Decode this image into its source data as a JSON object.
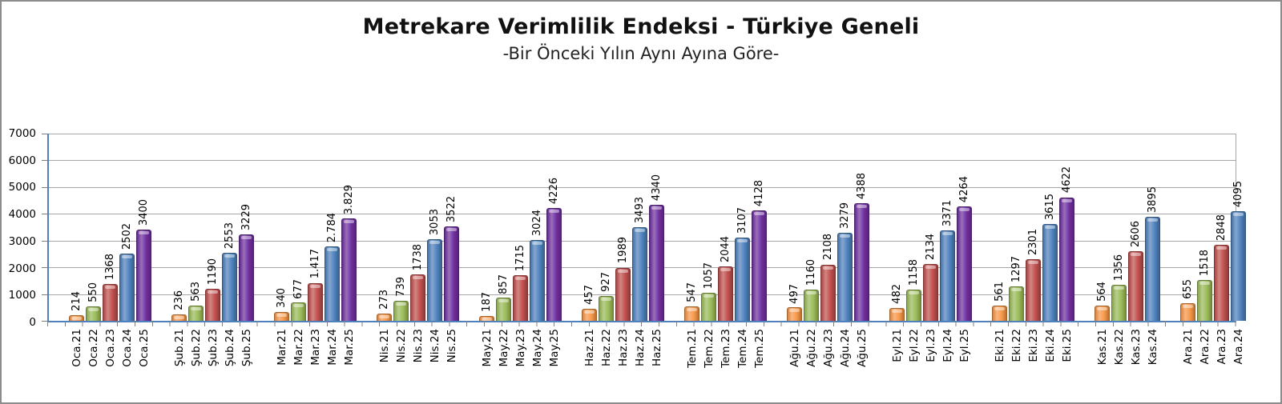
{
  "title": "Metrekare Verimlilik Endeksi - Türkiye Geneli",
  "subtitle": "-Bir Önceki Yılın Aynı Ayına Göre-",
  "chart_data": {
    "type": "bar",
    "title": "Metrekare Verimlilik Endeksi - Türkiye Geneli",
    "subtitle": "-Bir Önceki Yılın Aynı Ayına Göre-",
    "xlabel": "",
    "ylabel": "",
    "ylim": [
      0,
      7000
    ],
    "ytick_step": 1000,
    "yticks": [
      0,
      1000,
      2000,
      3000,
      4000,
      5000,
      6000,
      7000
    ],
    "grid": "horizontal",
    "legend": "none",
    "axis_color": "#4F81BD",
    "gridline_color": "#A6A6A6",
    "bar_colors": [
      "#F79646",
      "#9BBB59",
      "#C0504D",
      "#4F81BD",
      "#7030A0"
    ],
    "groups": [
      {
        "month": "Oca",
        "bars": [
          {
            "label": "Oca.21",
            "value": 214,
            "display": "214"
          },
          {
            "label": "Oca.22",
            "value": 550,
            "display": "550"
          },
          {
            "label": "Oca.23",
            "value": 1368,
            "display": "1368"
          },
          {
            "label": "Oca.24",
            "value": 2502,
            "display": "2502"
          },
          {
            "label": "Oca.25",
            "value": 3400,
            "display": "3400"
          }
        ]
      },
      {
        "month": "Şub",
        "bars": [
          {
            "label": "Şub.21",
            "value": 236,
            "display": "236"
          },
          {
            "label": "Şub.22",
            "value": 563,
            "display": "563"
          },
          {
            "label": "Şub.23",
            "value": 1190,
            "display": "1190"
          },
          {
            "label": "Şub.24",
            "value": 2553,
            "display": "2553"
          },
          {
            "label": "Şub.25",
            "value": 3229,
            "display": "3229"
          }
        ]
      },
      {
        "month": "Mar",
        "bars": [
          {
            "label": "Mar.21",
            "value": 340,
            "display": "340"
          },
          {
            "label": "Mar.22",
            "value": 677,
            "display": "677"
          },
          {
            "label": "Mar.23",
            "value": 1417,
            "display": "1.417"
          },
          {
            "label": "Mar.24",
            "value": 2784,
            "display": "2.784"
          },
          {
            "label": "Mar.25",
            "value": 3829,
            "display": "3.829"
          }
        ]
      },
      {
        "month": "Nis",
        "bars": [
          {
            "label": "Nis.21",
            "value": 273,
            "display": "273"
          },
          {
            "label": "Nis.22",
            "value": 739,
            "display": "739"
          },
          {
            "label": "Nis.23",
            "value": 1738,
            "display": "1738"
          },
          {
            "label": "Nis.24",
            "value": 3053,
            "display": "3053"
          },
          {
            "label": "Nis.25",
            "value": 3522,
            "display": "3522"
          }
        ]
      },
      {
        "month": "May",
        "bars": [
          {
            "label": "May.21",
            "value": 187,
            "display": "187"
          },
          {
            "label": "May.22",
            "value": 857,
            "display": "857"
          },
          {
            "label": "May.23",
            "value": 1715,
            "display": "1715"
          },
          {
            "label": "May.24",
            "value": 3024,
            "display": "3024"
          },
          {
            "label": "May.25",
            "value": 4226,
            "display": "4226"
          }
        ]
      },
      {
        "month": "Haz",
        "bars": [
          {
            "label": "Haz.21",
            "value": 457,
            "display": "457"
          },
          {
            "label": "Haz.22",
            "value": 927,
            "display": "927"
          },
          {
            "label": "Haz.23",
            "value": 1989,
            "display": "1989"
          },
          {
            "label": "Haz.24",
            "value": 3493,
            "display": "3493"
          },
          {
            "label": "Haz.25",
            "value": 4340,
            "display": "4340"
          }
        ]
      },
      {
        "month": "Tem",
        "bars": [
          {
            "label": "Tem.21",
            "value": 547,
            "display": "547"
          },
          {
            "label": "Tem.22",
            "value": 1057,
            "display": "1057"
          },
          {
            "label": "Tem.23",
            "value": 2044,
            "display": "2044"
          },
          {
            "label": "Tem.24",
            "value": 3107,
            "display": "3107"
          },
          {
            "label": "Tem.25",
            "value": 4128,
            "display": "4128"
          }
        ]
      },
      {
        "month": "Ağu",
        "bars": [
          {
            "label": "Ağu.21",
            "value": 497,
            "display": "497"
          },
          {
            "label": "Ağu.22",
            "value": 1160,
            "display": "1160"
          },
          {
            "label": "Ağu.23",
            "value": 2108,
            "display": "2108"
          },
          {
            "label": "Ağu.24",
            "value": 3279,
            "display": "3279"
          },
          {
            "label": "Ağu.25",
            "value": 4388,
            "display": "4388"
          }
        ]
      },
      {
        "month": "Eyl",
        "bars": [
          {
            "label": "Eyl.21",
            "value": 482,
            "display": "482"
          },
          {
            "label": "Eyl.22",
            "value": 1158,
            "display": "1158"
          },
          {
            "label": "Eyl.23",
            "value": 2134,
            "display": "2134"
          },
          {
            "label": "Eyl.24",
            "value": 3371,
            "display": "3371"
          },
          {
            "label": "Eyl.25",
            "value": 4264,
            "display": "4264"
          }
        ]
      },
      {
        "month": "Eki",
        "bars": [
          {
            "label": "Eki.21",
            "value": 561,
            "display": "561"
          },
          {
            "label": "Eki.22",
            "value": 1297,
            "display": "1297"
          },
          {
            "label": "Eki.23",
            "value": 2301,
            "display": "2301"
          },
          {
            "label": "Eki.24",
            "value": 3615,
            "display": "3615"
          },
          {
            "label": "Eki.25",
            "value": 4622,
            "display": "4622"
          }
        ]
      },
      {
        "month": "Kas",
        "bars": [
          {
            "label": "Kas.21",
            "value": 564,
            "display": "564"
          },
          {
            "label": "Kas.22",
            "value": 1356,
            "display": "1356"
          },
          {
            "label": "Kas.23",
            "value": 2606,
            "display": "2606"
          },
          {
            "label": "Kas.24",
            "value": 3895,
            "display": "3895"
          }
        ]
      },
      {
        "month": "Ara",
        "bars": [
          {
            "label": "Ara.21",
            "value": 655,
            "display": "655"
          },
          {
            "label": "Ara.22",
            "value": 1518,
            "display": "1518"
          },
          {
            "label": "Ara.23",
            "value": 2848,
            "display": "2848"
          },
          {
            "label": "Ara.24",
            "value": 4095,
            "display": "4095"
          }
        ]
      }
    ]
  }
}
